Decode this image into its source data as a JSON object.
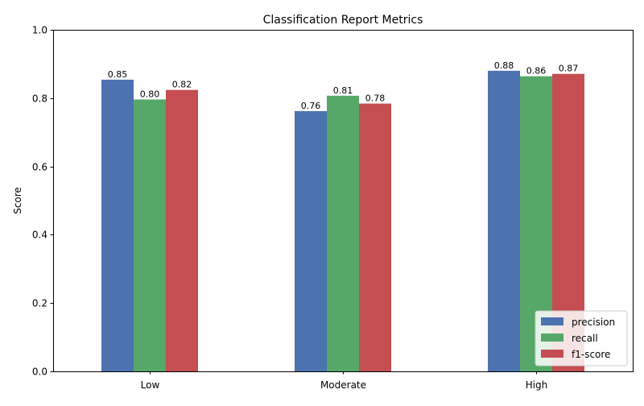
{
  "chart_data": {
    "type": "bar",
    "title": "Classification Report Metrics",
    "xlabel": "",
    "ylabel": "Score",
    "ylim": [
      0,
      1
    ],
    "yticks": [
      0.0,
      0.2,
      0.4,
      0.6,
      0.8,
      1.0
    ],
    "ytick_labels": [
      "0.0",
      "0.2",
      "0.4",
      "0.6",
      "0.8",
      "1.0"
    ],
    "categories": [
      "Low",
      "Moderate",
      "High"
    ],
    "series": [
      {
        "name": "precision",
        "color": "#4c72b0",
        "values": [
          0.854,
          0.762,
          0.88
        ],
        "labels": [
          "0.85",
          "0.76",
          "0.88"
        ]
      },
      {
        "name": "recall",
        "color": "#55a868",
        "values": [
          0.796,
          0.807,
          0.864
        ],
        "labels": [
          "0.80",
          "0.81",
          "0.86"
        ]
      },
      {
        "name": "f1-score",
        "color": "#c44e52",
        "values": [
          0.824,
          0.784,
          0.871
        ],
        "labels": [
          "0.82",
          "0.78",
          "0.87"
        ]
      }
    ],
    "grid": false,
    "legend_position": "bottom-right"
  }
}
